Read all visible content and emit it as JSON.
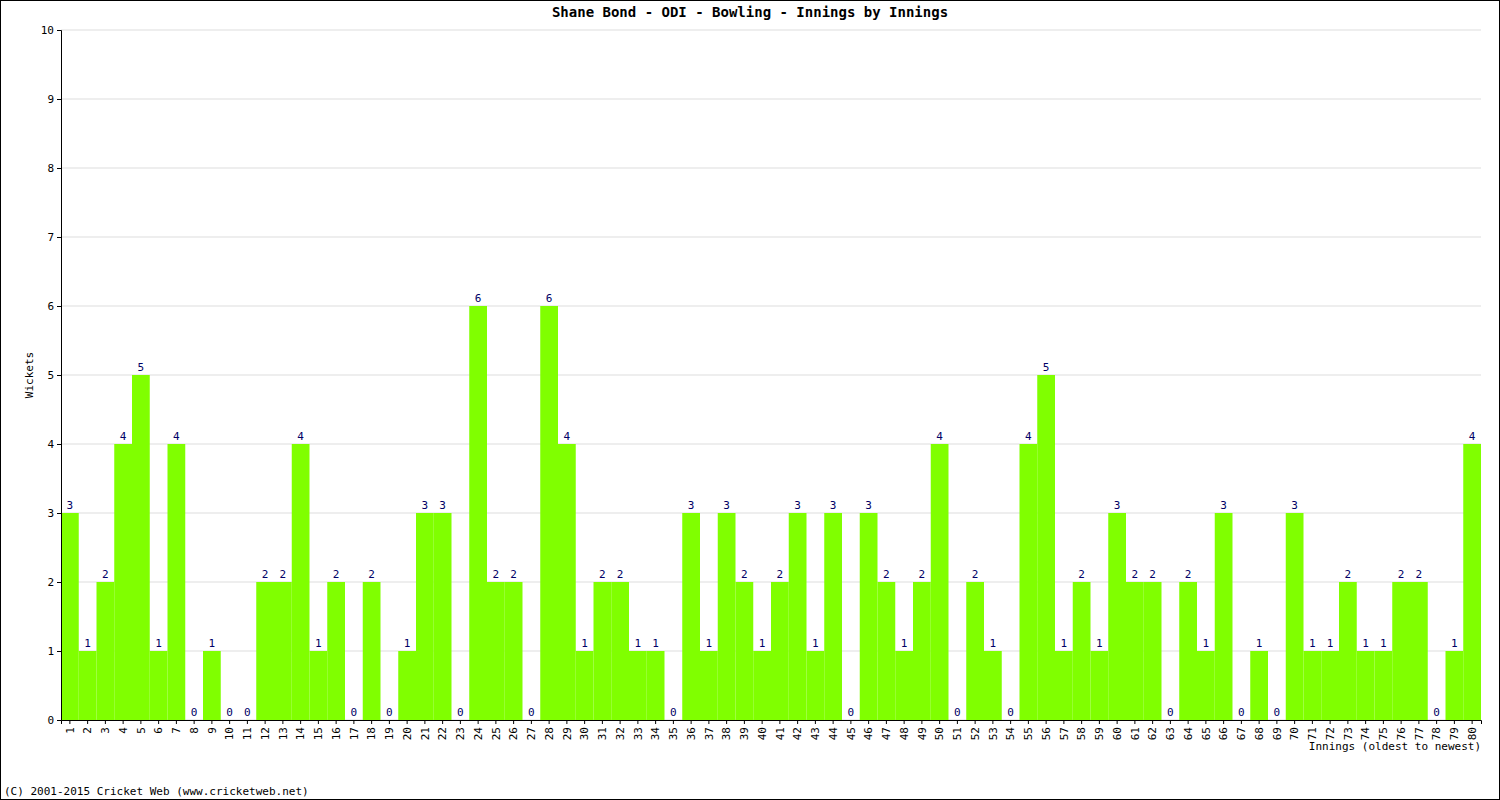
{
  "chart_data": {
    "type": "bar",
    "title": "Shane Bond - ODI - Bowling - Innings by Innings",
    "x_label": "Innings (oldest to newest)",
    "y_label": "Wickets",
    "annotations": [
      "(C) 2001-2015 Cricket Web (www.cricketweb.net)"
    ],
    "categories": [
      "1",
      "2",
      "3",
      "4",
      "5",
      "6",
      "7",
      "8",
      "9",
      "10",
      "11",
      "12",
      "13",
      "14",
      "15",
      "16",
      "17",
      "18",
      "19",
      "20",
      "21",
      "22",
      "23",
      "24",
      "25",
      "26",
      "27",
      "28",
      "29",
      "30",
      "31",
      "32",
      "33",
      "34",
      "35",
      "36",
      "37",
      "38",
      "39",
      "40",
      "41",
      "42",
      "43",
      "44",
      "45",
      "46",
      "47",
      "48",
      "49",
      "50",
      "51",
      "52",
      "53",
      "54",
      "55",
      "56",
      "57",
      "58",
      "59",
      "60",
      "61",
      "62",
      "63",
      "64",
      "65",
      "66",
      "67",
      "68",
      "69",
      "70",
      "71",
      "72",
      "73",
      "74",
      "75",
      "76",
      "77",
      "78",
      "79",
      "80"
    ],
    "values": [
      3,
      1,
      2,
      4,
      5,
      1,
      4,
      0,
      1,
      0,
      0,
      2,
      2,
      4,
      1,
      2,
      0,
      2,
      0,
      1,
      3,
      3,
      0,
      6,
      2,
      2,
      0,
      6,
      4,
      1,
      2,
      2,
      1,
      1,
      0,
      3,
      1,
      3,
      2,
      1,
      2,
      3,
      1,
      3,
      0,
      3,
      2,
      1,
      2,
      4,
      0,
      2,
      1,
      0,
      4,
      5,
      1,
      2,
      1,
      3,
      2,
      2,
      0,
      2,
      1,
      3,
      0,
      1,
      0,
      3,
      1,
      1,
      2,
      1,
      1,
      2,
      2,
      0,
      1,
      4
    ],
    "color": "#80ff00",
    "ylim": [
      0,
      10
    ],
    "yticks": [
      0,
      1,
      2,
      3,
      4,
      5,
      6,
      7,
      8,
      9,
      10
    ],
    "grid": true,
    "data_labels": true
  }
}
